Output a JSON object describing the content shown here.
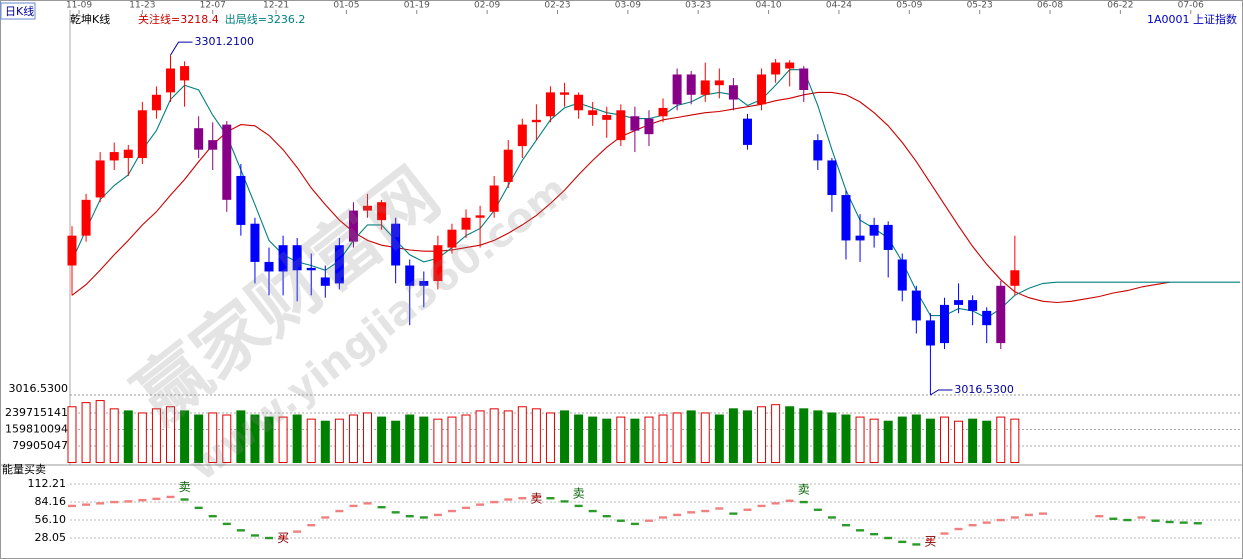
{
  "header": {
    "period": "日K线",
    "symbol": "1A0001 上证指数"
  },
  "watermark": [
    "赢家财富网",
    "www.yingjia360.com"
  ],
  "chart_data": [
    {
      "type": "candlestick",
      "title": "乾坤K线",
      "xlim": [
        0,
        83
      ],
      "xticks": [
        {
          "value": 0.5,
          "label": "11-09"
        },
        {
          "value": 5,
          "label": "11-23"
        },
        {
          "value": 10,
          "label": "12-07"
        },
        {
          "value": 14.5,
          "label": "12-21"
        },
        {
          "value": 19.5,
          "label": "01-05"
        },
        {
          "value": 24.5,
          "label": "01-19"
        },
        {
          "value": 29.5,
          "label": "02-09"
        },
        {
          "value": 34.5,
          "label": "02-23"
        },
        {
          "value": 39.5,
          "label": "03-09"
        },
        {
          "value": 44.5,
          "label": "03-23"
        },
        {
          "value": 49.5,
          "label": "04-10"
        },
        {
          "value": 54.5,
          "label": "04-24"
        },
        {
          "value": 59.5,
          "label": "05-09"
        },
        {
          "value": 64.5,
          "label": "05-23"
        },
        {
          "value": 69.5,
          "label": "06-08"
        },
        {
          "value": 74.5,
          "label": "06-22"
        },
        {
          "value": 79.5,
          "label": "07-06"
        }
      ],
      "ylim": [
        3016.53,
        3339
      ],
      "yticks": [
        {
          "value": 3016.53,
          "label": "3016.5300"
        }
      ],
      "open": [
        3125,
        3150,
        3182,
        3213,
        3222,
        3215,
        3255,
        3270,
        3292,
        3240,
        3222,
        3180,
        3200,
        3160,
        3128,
        3120,
        3142,
        3121,
        3115,
        3110,
        3145,
        3171,
        3178,
        3160,
        3125,
        3112,
        3112,
        3140,
        3155,
        3165,
        3170,
        3195,
        3225,
        3245,
        3250,
        3270,
        3268,
        3255,
        3251,
        3230,
        3250,
        3235,
        3250,
        3260,
        3285,
        3268,
        3280,
        3276,
        3248,
        3260,
        3285,
        3295,
        3290,
        3230,
        3213,
        3184,
        3146,
        3150,
        3159,
        3130,
        3104,
        3079,
        3060,
        3092,
        3096,
        3087,
        3060,
        3108
      ],
      "high": [
        3158,
        3185,
        3220,
        3228,
        3226,
        3262,
        3275,
        3301.21,
        3296,
        3250,
        3245,
        3246,
        3210,
        3165,
        3140,
        3150,
        3148,
        3135,
        3125,
        3148,
        3178,
        3185,
        3180,
        3165,
        3130,
        3120,
        3150,
        3160,
        3172,
        3175,
        3200,
        3230,
        3248,
        3260,
        3275,
        3278,
        3270,
        3262,
        3258,
        3260,
        3258,
        3255,
        3265,
        3290,
        3288,
        3295,
        3290,
        3282,
        3252,
        3290,
        3298,
        3297,
        3292,
        3235,
        3215,
        3188,
        3168,
        3165,
        3162,
        3135,
        3108,
        3085,
        3098,
        3110,
        3100,
        3090,
        3112,
        3150
      ],
      "low": [
        3100,
        3145,
        3178,
        3205,
        3200,
        3210,
        3248,
        3262,
        3258,
        3215,
        3205,
        3170,
        3150,
        3110,
        3100,
        3100,
        3095,
        3100,
        3098,
        3105,
        3140,
        3165,
        3155,
        3110,
        3075,
        3090,
        3105,
        3135,
        3148,
        3140,
        3165,
        3190,
        3215,
        3230,
        3245,
        3258,
        3248,
        3242,
        3232,
        3225,
        3220,
        3225,
        3245,
        3255,
        3260,
        3262,
        3265,
        3255,
        3222,
        3255,
        3278,
        3275,
        3262,
        3205,
        3170,
        3130,
        3128,
        3140,
        3115,
        3095,
        3068,
        3016.53,
        3055,
        3085,
        3075,
        3060,
        3055,
        3100
      ],
      "close": [
        3150,
        3180,
        3213,
        3220,
        3215,
        3255,
        3268,
        3290,
        3280,
        3222,
        3230,
        3243,
        3159,
        3128,
        3120,
        3142,
        3121,
        3123,
        3108,
        3142,
        3171,
        3175,
        3163,
        3125,
        3108,
        3108,
        3142,
        3155,
        3165,
        3167,
        3192,
        3222,
        3243,
        3247,
        3270,
        3268,
        3255,
        3251,
        3247,
        3255,
        3238,
        3248,
        3257,
        3285,
        3268,
        3280,
        3276,
        3264,
        3226,
        3285,
        3295,
        3290,
        3272,
        3213,
        3184,
        3146,
        3150,
        3159,
        3138,
        3104,
        3079,
        3058,
        3092,
        3096,
        3087,
        3075,
        3108,
        3121
      ],
      "colors": [
        "#f00",
        "#f00",
        "#f00",
        "#f00",
        "#f00",
        "#f00",
        "#f00",
        "#f00",
        "#f00",
        "#808",
        "#808",
        "#808",
        "#00f",
        "#00f",
        "#00f",
        "#00f",
        "#00f",
        "#00f",
        "#00f",
        "#00f",
        "#808",
        "#f00",
        "#f00",
        "#00f",
        "#00f",
        "#00f",
        "#f00",
        "#f00",
        "#f00",
        "#f00",
        "#f00",
        "#f00",
        "#f00",
        "#f00",
        "#f00",
        "#f00",
        "#f00",
        "#f00",
        "#f00",
        "#f00",
        "#808",
        "#808",
        "#f00",
        "#808",
        "#808",
        "#f00",
        "#f00",
        "#808",
        "#00f",
        "#f00",
        "#f00",
        "#f00",
        "#808",
        "#00f",
        "#00f",
        "#00f",
        "#00f",
        "#00f",
        "#00f",
        "#00f",
        "#00f",
        "#00f",
        "#00f",
        "#00f",
        "#00f",
        "#00f",
        "#808",
        "#f00"
      ],
      "series": [
        {
          "name": "关注线=3218.4",
          "color": "#cc0000",
          "values": [
            3100,
            3109,
            3121,
            3134,
            3146,
            3159,
            3170,
            3184,
            3197,
            3212,
            3226,
            3237,
            3243,
            3242,
            3234,
            3222,
            3207,
            3190,
            3176,
            3163,
            3153,
            3146,
            3142,
            3140,
            3138,
            3137,
            3137,
            3138,
            3140,
            3142,
            3146,
            3152,
            3159,
            3167,
            3177,
            3188,
            3201,
            3213,
            3224,
            3233,
            3238,
            3243,
            3247,
            3249,
            3251,
            3253,
            3254,
            3256,
            3258,
            3260,
            3263,
            3265,
            3268,
            3270,
            3270,
            3268,
            3262,
            3253,
            3242,
            3228,
            3212,
            3194,
            3176,
            3158,
            3141,
            3126,
            3113,
            3103,
            3098,
            3095,
            3094,
            3095,
            3097,
            3099,
            3102,
            3104,
            3107,
            3109,
            3111,
            null,
            null,
            null,
            null,
            null
          ]
        },
        {
          "name": "出局线=3236.2",
          "color": "#008080",
          "values": [
            3129,
            3155,
            3180,
            3192,
            3201,
            3222,
            3238,
            3264,
            3276,
            3272,
            3251,
            3234,
            3205,
            3176,
            3146,
            3134,
            3128,
            3125,
            3121,
            3129,
            3146,
            3159,
            3159,
            3146,
            3134,
            3128,
            3131,
            3140,
            3150,
            3156,
            3171,
            3192,
            3213,
            3230,
            3247,
            3257,
            3261,
            3257,
            3253,
            3251,
            3248,
            3248,
            3251,
            3259,
            3262,
            3268,
            3270,
            3268,
            3259,
            3264,
            3276,
            3289,
            3289,
            3259,
            3222,
            3188,
            3163,
            3156,
            3148,
            3128,
            3104,
            3083,
            3083,
            3089,
            3087,
            3081,
            3089,
            3100,
            3106,
            3110,
            3111,
            3111,
            3111,
            3111,
            3111,
            3111,
            3111,
            3111,
            3111,
            3111,
            3111,
            3111,
            3111,
            3111
          ]
        }
      ],
      "annotations": [
        {
          "label": "3301.2100",
          "value": 3301.21
        },
        {
          "label": "3016.5300",
          "value": 3016.53
        }
      ]
    },
    {
      "type": "bar",
      "xlim": [
        0,
        83
      ],
      "ylim": [
        0,
        327000000
      ],
      "yticks": [
        79905047,
        159810094,
        239715141
      ],
      "up_color": "#e00000",
      "down_color": "#008000",
      "values": [
        270000000,
        290000000,
        300000000,
        260000000,
        250000000,
        240000000,
        260000000,
        270000000,
        250000000,
        230000000,
        240000000,
        230000000,
        250000000,
        230000000,
        220000000,
        220000000,
        230000000,
        210000000,
        200000000,
        210000000,
        230000000,
        240000000,
        220000000,
        200000000,
        230000000,
        220000000,
        210000000,
        220000000,
        230000000,
        250000000,
        260000000,
        250000000,
        270000000,
        260000000,
        240000000,
        250000000,
        230000000,
        220000000,
        210000000,
        220000000,
        210000000,
        220000000,
        230000000,
        240000000,
        250000000,
        240000000,
        230000000,
        260000000,
        250000000,
        270000000,
        280000000,
        270000000,
        260000000,
        250000000,
        240000000,
        230000000,
        220000000,
        210000000,
        200000000,
        220000000,
        230000000,
        210000000,
        220000000,
        200000000,
        210000000,
        200000000,
        220000000,
        210000000
      ]
    },
    {
      "type": "signal",
      "title": "能量买卖",
      "xlim": [
        0,
        83
      ],
      "ylim": [
        0,
        121.5
      ],
      "yticks": [
        28.05,
        {
          "value": 56.1,
          "label": "56.10"
        },
        84.16,
        112.21
      ],
      "up_color": "#f08080",
      "down_color": "#2a9a2a",
      "values": [
        78,
        80,
        82,
        84,
        85,
        87,
        89,
        92,
        88,
        75,
        62,
        50,
        40,
        32,
        28,
        30,
        38,
        48,
        60,
        70,
        78,
        82,
        76,
        68,
        62,
        60,
        64,
        70,
        75,
        80,
        84,
        88,
        90,
        92,
        90,
        85,
        78,
        70,
        62,
        55,
        50,
        55,
        60,
        64,
        68,
        70,
        74,
        66,
        72,
        78,
        82,
        86,
        84,
        72,
        60,
        48,
        40,
        34,
        28,
        22,
        18,
        25,
        35,
        42,
        48,
        52,
        56,
        60,
        64,
        66,
        null,
        null,
        null,
        62,
        58,
        56,
        60,
        55,
        53,
        52,
        51,
        null,
        null,
        null
      ],
      "signals": [
        null,
        null,
        null,
        null,
        null,
        null,
        null,
        null,
        "卖",
        null,
        null,
        null,
        null,
        null,
        null,
        "买",
        null,
        null,
        null,
        null,
        null,
        null,
        null,
        null,
        null,
        null,
        null,
        null,
        null,
        null,
        null,
        null,
        null,
        "卖",
        null,
        null,
        "卖",
        null,
        null,
        null,
        null,
        null,
        null,
        null,
        null,
        null,
        null,
        null,
        null,
        null,
        null,
        null,
        "卖",
        null,
        null,
        null,
        null,
        null,
        null,
        null,
        null,
        "买",
        null,
        null,
        null,
        null,
        null,
        null,
        null,
        null,
        null,
        null,
        null,
        null,
        null,
        null,
        null,
        null,
        null,
        null,
        null,
        null,
        null,
        null
      ]
    }
  ]
}
